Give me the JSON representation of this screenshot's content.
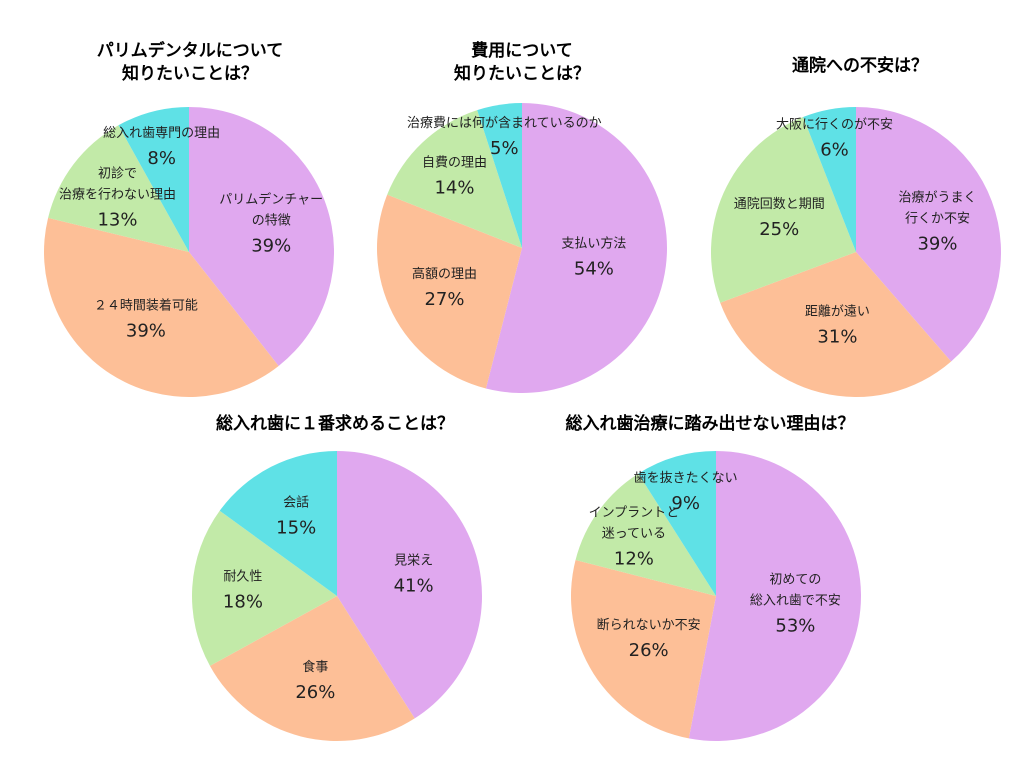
{
  "colors": {
    "violet": "#e0a8ef",
    "orange": "#fdbf97",
    "green": "#c2eaa8",
    "cyan": "#5fe1e6"
  },
  "chart_data": [
    {
      "type": "pie",
      "title": "パリムデンタルについて\n知りたいことは？",
      "slices": [
        {
          "label": "パリムデンチャー\nの特徴",
          "value": 39,
          "pct": "39%",
          "color": "#e0a8ef"
        },
        {
          "label": "２４時間装着可能",
          "value": 39,
          "pct": "39%",
          "color": "#fdbf97"
        },
        {
          "label": "初診で\n治療を行わない理由",
          "value": 13,
          "pct": "13%",
          "color": "#c2eaa8"
        },
        {
          "label": "総入れ歯専門の理由",
          "value": 8,
          "pct": "8%",
          "color": "#5fe1e6"
        }
      ]
    },
    {
      "type": "pie",
      "title": "費用について\n知りたいことは？",
      "slices": [
        {
          "label": "支払い方法",
          "value": 54,
          "pct": "54%",
          "color": "#e0a8ef"
        },
        {
          "label": "高額の理由",
          "value": 27,
          "pct": "27%",
          "color": "#fdbf97"
        },
        {
          "label": "自費の理由",
          "value": 14,
          "pct": "14%",
          "color": "#c2eaa8"
        },
        {
          "label": "治療費には何が含まれているのか",
          "value": 5,
          "pct": "5%",
          "color": "#5fe1e6"
        }
      ]
    },
    {
      "type": "pie",
      "title": "通院への不安は？",
      "slices": [
        {
          "label": "治療がうまく\n行くか不安",
          "value": 39,
          "pct": "39%",
          "color": "#e0a8ef"
        },
        {
          "label": "距離が遠い",
          "value": 31,
          "pct": "31%",
          "color": "#fdbf97"
        },
        {
          "label": "通院回数と期間",
          "value": 25,
          "pct": "25%",
          "color": "#c2eaa8"
        },
        {
          "label": "大阪に行くのが不安",
          "value": 6,
          "pct": "6%",
          "color": "#5fe1e6"
        }
      ]
    },
    {
      "type": "pie",
      "title": "総入れ歯に１番求めることは？",
      "slices": [
        {
          "label": "見栄え",
          "value": 41,
          "pct": "41%",
          "color": "#e0a8ef"
        },
        {
          "label": "食事",
          "value": 26,
          "pct": "26%",
          "color": "#fdbf97"
        },
        {
          "label": "耐久性",
          "value": 18,
          "pct": "18%",
          "color": "#c2eaa8"
        },
        {
          "label": "会話",
          "value": 15,
          "pct": "15%",
          "color": "#5fe1e6"
        }
      ]
    },
    {
      "type": "pie",
      "title": "総入れ歯治療に踏み出せない理由は？",
      "slices": [
        {
          "label": "初めての\n総入れ歯で不安",
          "value": 53,
          "pct": "53%",
          "color": "#e0a8ef"
        },
        {
          "label": "断られないか不安",
          "value": 26,
          "pct": "26%",
          "color": "#fdbf97"
        },
        {
          "label": "インプラントと\n迷っている",
          "value": 12,
          "pct": "12%",
          "color": "#c2eaa8"
        },
        {
          "label": "歯を抜きたくない",
          "value": 9,
          "pct": "9%",
          "color": "#5fe1e6"
        }
      ]
    }
  ]
}
